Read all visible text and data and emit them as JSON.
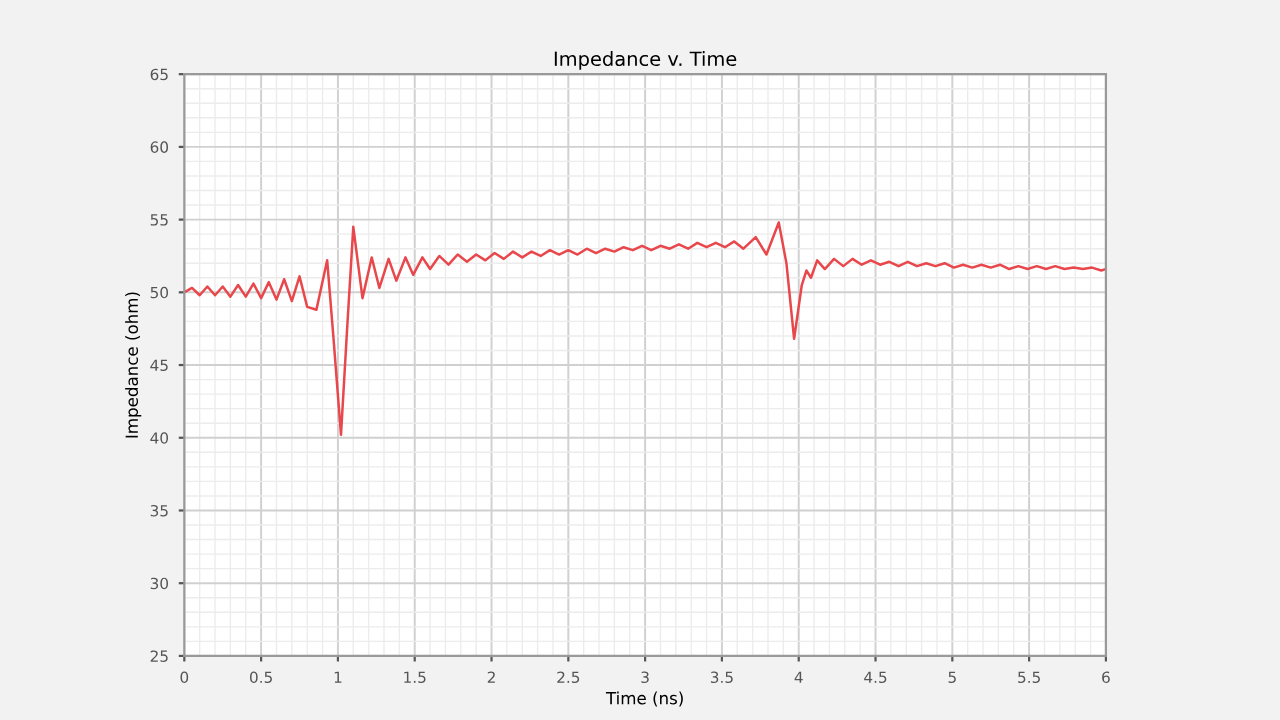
{
  "chart_data": {
    "type": "line",
    "title": "Impedance v. Time",
    "xlabel": "Time (ns)",
    "ylabel": "Impedance (ohm)",
    "xlim": [
      0,
      6
    ],
    "ylim": [
      25,
      65
    ],
    "xticks": [
      0,
      0.5,
      1,
      1.5,
      2,
      2.5,
      3,
      3.5,
      4,
      4.5,
      5,
      5.5,
      6
    ],
    "yticks": [
      25,
      30,
      35,
      40,
      45,
      50,
      55,
      60,
      65
    ],
    "grid": true,
    "marker": "none",
    "line_style": "solid",
    "series": [
      {
        "color": "#e8474c",
        "x": [
          0,
          0.05,
          0.1,
          0.15,
          0.2,
          0.25,
          0.3,
          0.35,
          0.4,
          0.45,
          0.5,
          0.55,
          0.6,
          0.65,
          0.7,
          0.75,
          0.8,
          0.86,
          0.93,
          0.97,
          1.02,
          1.06,
          1.1,
          1.16,
          1.22,
          1.27,
          1.33,
          1.38,
          1.44,
          1.49,
          1.55,
          1.6,
          1.66,
          1.72,
          1.78,
          1.84,
          1.9,
          1.96,
          2.02,
          2.08,
          2.14,
          2.2,
          2.26,
          2.32,
          2.38,
          2.44,
          2.5,
          2.56,
          2.62,
          2.68,
          2.74,
          2.8,
          2.86,
          2.92,
          2.98,
          3.04,
          3.1,
          3.16,
          3.22,
          3.28,
          3.34,
          3.4,
          3.46,
          3.52,
          3.58,
          3.64,
          3.72,
          3.79,
          3.87,
          3.92,
          3.97,
          4.02,
          4.05,
          4.08,
          4.12,
          4.17,
          4.23,
          4.29,
          4.35,
          4.41,
          4.47,
          4.53,
          4.59,
          4.65,
          4.71,
          4.77,
          4.83,
          4.89,
          4.95,
          5.01,
          5.07,
          5.13,
          5.19,
          5.25,
          5.31,
          5.37,
          5.43,
          5.49,
          5.55,
          5.61,
          5.67,
          5.73,
          5.79,
          5.85,
          5.91,
          5.97,
          6
        ],
        "values": [
          50.0,
          50.3,
          49.8,
          50.4,
          49.8,
          50.4,
          49.7,
          50.5,
          49.7,
          50.6,
          49.6,
          50.7,
          49.5,
          50.9,
          49.4,
          51.1,
          49.0,
          48.8,
          52.2,
          47.0,
          40.2,
          47.5,
          54.5,
          49.6,
          52.4,
          50.3,
          52.3,
          50.8,
          52.4,
          51.2,
          52.4,
          51.6,
          52.5,
          51.9,
          52.6,
          52.1,
          52.6,
          52.2,
          52.7,
          52.3,
          52.8,
          52.4,
          52.8,
          52.5,
          52.9,
          52.6,
          52.9,
          52.6,
          53.0,
          52.7,
          53.0,
          52.8,
          53.1,
          52.9,
          53.2,
          52.9,
          53.2,
          53.0,
          53.3,
          53.0,
          53.4,
          53.1,
          53.4,
          53.1,
          53.5,
          53.0,
          53.8,
          52.6,
          54.8,
          52.0,
          46.8,
          50.5,
          51.5,
          51.0,
          52.2,
          51.6,
          52.3,
          51.8,
          52.3,
          51.9,
          52.2,
          51.9,
          52.1,
          51.8,
          52.1,
          51.8,
          52.0,
          51.8,
          52.0,
          51.7,
          51.9,
          51.7,
          51.9,
          51.7,
          51.9,
          51.6,
          51.8,
          51.6,
          51.8,
          51.6,
          51.8,
          51.6,
          51.7,
          51.6,
          51.7,
          51.5,
          51.6
        ]
      }
    ]
  }
}
